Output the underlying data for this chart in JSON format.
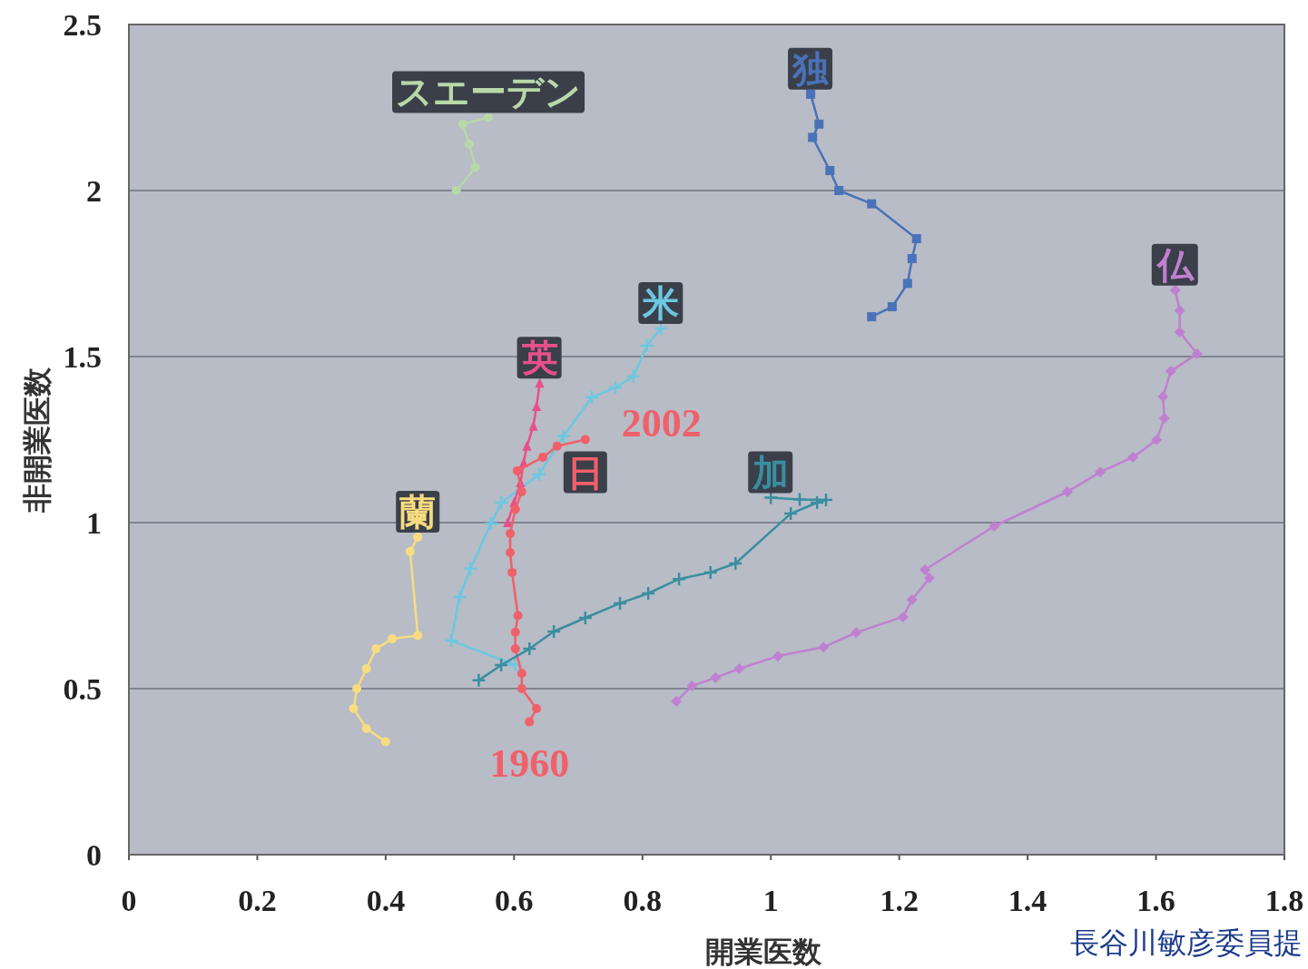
{
  "chart_data": {
    "type": "line",
    "xlabel": "開業医数",
    "ylabel": "非開業医数",
    "xlim": [
      0,
      1.8
    ],
    "xticks": [
      0,
      0.2,
      0.4,
      0.6,
      0.8,
      1,
      1.2,
      1.4,
      1.6,
      1.8
    ],
    "ylim": [
      0,
      2.5
    ],
    "yticks": [
      0,
      0.5,
      1,
      1.5,
      2,
      2.5
    ],
    "grid": "y",
    "annotations": [
      {
        "text": "1960",
        "x": 0.624,
        "y": 0.4
      },
      {
        "text": "2002",
        "x": 0.711,
        "y": 1.25
      },
      "長谷川敏彦委員提"
    ],
    "series": [
      {
        "name": "スエーデン",
        "color": "#b8d8a8",
        "marker": "circle",
        "x": [
          0.51,
          0.54,
          0.53,
          0.52,
          0.56
        ],
        "values": [
          2.0,
          2.07,
          2.14,
          2.2,
          2.22
        ]
      },
      {
        "name": "独",
        "color": "#4a72b8",
        "marker": "square",
        "x": [
          1.157,
          1.189,
          1.213,
          1.22,
          1.227,
          1.157,
          1.106,
          1.092,
          1.065,
          1.075,
          1.062
        ],
        "values": [
          1.62,
          1.65,
          1.72,
          1.795,
          1.855,
          1.96,
          2.0,
          2.06,
          2.16,
          2.2,
          2.29
        ]
      },
      {
        "name": "米",
        "color": "#6cc8e0",
        "marker": "cross",
        "x": [
          0.602,
          0.502,
          0.515,
          0.532,
          0.564,
          0.58,
          0.639,
          0.677,
          0.721,
          0.758,
          0.786,
          0.807,
          0.829
        ],
        "values": [
          0.571,
          0.645,
          0.776,
          0.861,
          0.997,
          1.06,
          1.145,
          1.26,
          1.377,
          1.407,
          1.44,
          1.533,
          1.585
        ]
      },
      {
        "name": "英",
        "color": "#e8508a",
        "marker": "triangle",
        "x": [
          0.59,
          0.6,
          0.61,
          0.615,
          0.62,
          0.63,
          0.635,
          0.64
        ],
        "values": [
          1.0,
          1.06,
          1.12,
          1.18,
          1.23,
          1.29,
          1.35,
          1.42
        ]
      },
      {
        "name": "日",
        "color": "#f0606a",
        "marker": "circle",
        "x": [
          0.624,
          0.635,
          0.612,
          0.612,
          0.602,
          0.602,
          0.606,
          0.597,
          0.594,
          0.594,
          0.602,
          0.612,
          0.605,
          0.645,
          0.667,
          0.711
        ],
        "values": [
          0.4,
          0.44,
          0.5,
          0.546,
          0.62,
          0.67,
          0.72,
          0.85,
          0.91,
          0.967,
          1.04,
          1.093,
          1.156,
          1.197,
          1.23,
          1.25
        ]
      },
      {
        "name": "加",
        "color": "#3a8ea0",
        "marker": "cross",
        "x": [
          0.545,
          0.58,
          0.624,
          0.662,
          0.711,
          0.765,
          0.809,
          0.857,
          0.906,
          0.945,
          1.031,
          1.072,
          1.086,
          1.045,
          1.0
        ],
        "values": [
          0.525,
          0.571,
          0.62,
          0.672,
          0.713,
          0.757,
          0.787,
          0.83,
          0.85,
          0.877,
          1.027,
          1.06,
          1.068,
          1.07,
          1.075
        ]
      },
      {
        "name": "蘭",
        "color": "#f8dc80",
        "marker": "circle",
        "x": [
          0.4,
          0.37,
          0.35,
          0.355,
          0.37,
          0.385,
          0.41,
          0.45,
          0.438,
          0.45
        ],
        "values": [
          0.34,
          0.38,
          0.44,
          0.5,
          0.56,
          0.62,
          0.65,
          0.66,
          0.913,
          0.956
        ]
      },
      {
        "name": "仏",
        "color": "#c080d0",
        "marker": "diamond",
        "x": [
          0.853,
          0.877,
          0.914,
          0.951,
          1.011,
          1.082,
          1.133,
          1.206,
          1.22,
          1.247,
          1.24,
          1.348,
          1.462,
          1.513,
          1.564,
          1.601,
          1.613,
          1.611,
          1.623,
          1.664,
          1.637,
          1.637,
          1.63
        ],
        "values": [
          0.462,
          0.508,
          0.533,
          0.56,
          0.598,
          0.625,
          0.669,
          0.716,
          0.768,
          0.833,
          0.858,
          0.989,
          1.093,
          1.152,
          1.197,
          1.249,
          1.314,
          1.38,
          1.456,
          1.508,
          1.574,
          1.639,
          1.7
        ]
      }
    ]
  }
}
